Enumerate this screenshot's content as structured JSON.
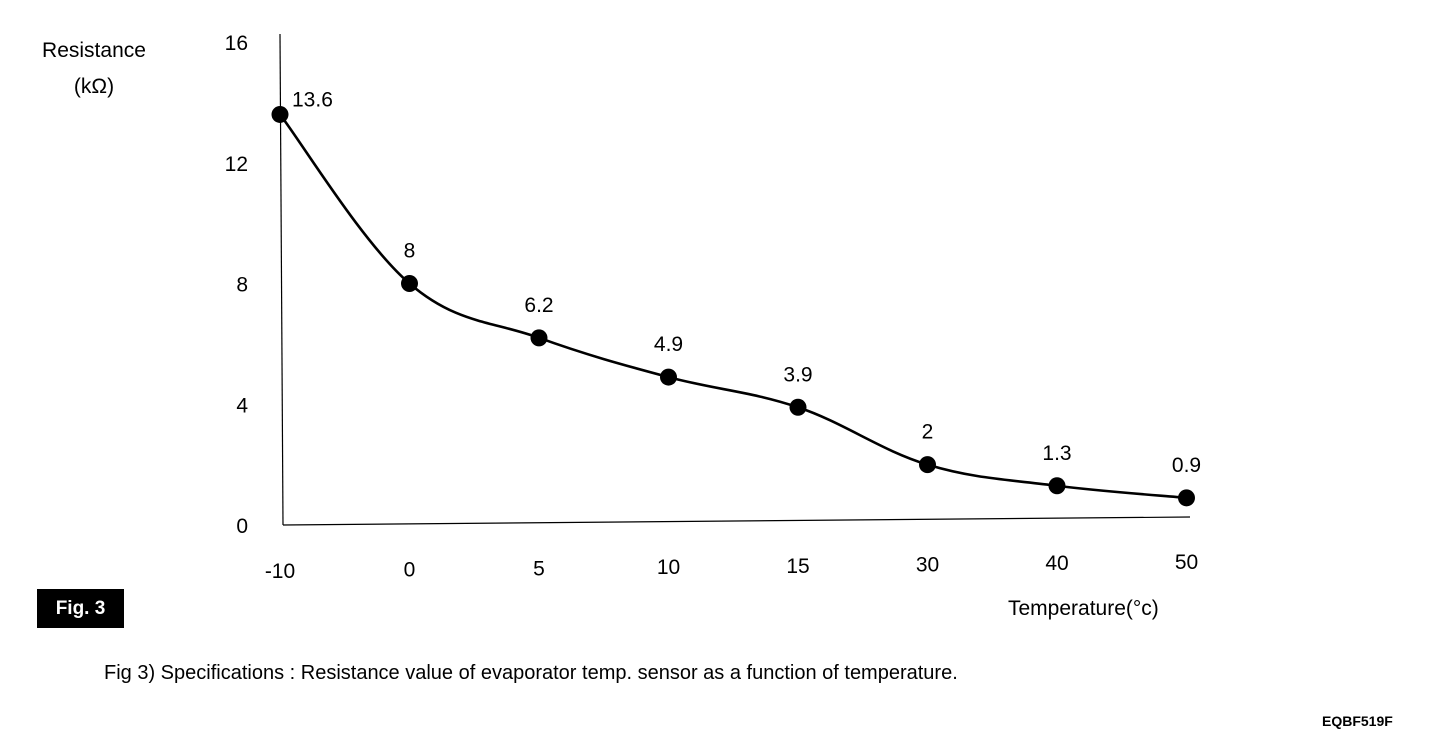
{
  "chart_data": {
    "type": "line",
    "ylabel_line1": "Resistance",
    "ylabel_line2": "(kΩ)",
    "xlabel": "Temperature(°c)",
    "categories": [
      "-10",
      "0",
      "5",
      "10",
      "15",
      "30",
      "40",
      "50"
    ],
    "series": [
      {
        "values": [
          13.6,
          8,
          6.2,
          4.9,
          3.9,
          2,
          1.3,
          0.9
        ],
        "labels": [
          "13.6",
          "8",
          "6.2",
          "4.9",
          "3.9",
          "2",
          "1.3",
          "0.9"
        ]
      }
    ],
    "yticks": [
      0,
      4,
      8,
      12,
      16
    ],
    "ylim": [
      0,
      16
    ],
    "grid": false,
    "smooth": true
  },
  "figure_badge": "Fig. 3",
  "caption": "Fig 3) Specifications : Resistance value of evaporator temp. sensor as a function of temperature.",
  "doc_code": "EQBF519F"
}
